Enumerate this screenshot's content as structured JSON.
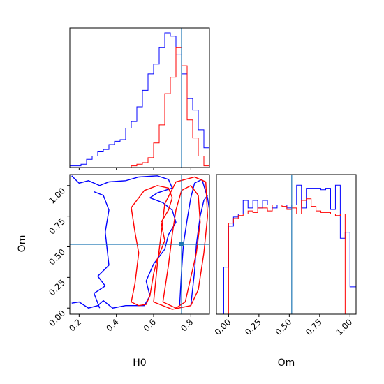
{
  "chart_data": [
    {
      "type": "histogram",
      "panel": "H0 marginal",
      "xlim": [
        0.15,
        0.9
      ],
      "truth": 0.75,
      "colors": {
        "blue": "#0000ff",
        "red": "#ff0000",
        "truth": "#1f77b4"
      },
      "series": [
        {
          "color": "blue",
          "edges": [
            0.15,
            0.18,
            0.21,
            0.24,
            0.27,
            0.3,
            0.33,
            0.36,
            0.39,
            0.42,
            0.45,
            0.48,
            0.51,
            0.54,
            0.57,
            0.6,
            0.63,
            0.66,
            0.69,
            0.72,
            0.75,
            0.78,
            0.81,
            0.84,
            0.87,
            0.9
          ],
          "values": [
            0.01,
            0.01,
            0.02,
            0.05,
            0.07,
            0.1,
            0.11,
            0.14,
            0.16,
            0.17,
            0.24,
            0.28,
            0.37,
            0.47,
            0.57,
            0.63,
            0.73,
            0.82,
            0.8,
            0.69,
            0.57,
            0.42,
            0.35,
            0.23,
            0.12
          ]
        },
        {
          "color": "red",
          "edges": [
            0.45,
            0.48,
            0.51,
            0.54,
            0.57,
            0.6,
            0.63,
            0.66,
            0.69,
            0.72,
            0.75,
            0.78,
            0.81,
            0.84,
            0.87,
            0.9
          ],
          "values": [
            0.0,
            0.01,
            0.02,
            0.03,
            0.06,
            0.15,
            0.26,
            0.45,
            0.55,
            0.73,
            0.62,
            0.29,
            0.18,
            0.07,
            0.01
          ]
        }
      ]
    },
    {
      "type": "contour",
      "panel": "H0 vs Om",
      "xlabel": "H0",
      "ylabel": "Om",
      "xlim": [
        0.15,
        0.9
      ],
      "ylim": [
        -0.05,
        1.09
      ],
      "xticks": [
        0.2,
        0.4,
        0.6,
        0.8
      ],
      "xtick_labels": [
        "0.2",
        "0.4",
        "0.6",
        "0.8"
      ],
      "yticks": [
        0.0,
        0.25,
        0.5,
        0.75,
        1.0
      ],
      "ytick_labels": [
        "0.00",
        "0.25",
        "0.50",
        "0.75",
        "1.00"
      ],
      "truth": [
        0.75,
        0.52
      ],
      "contours": [
        {
          "color": "blue",
          "points": [
            [
              0.16,
              1.08
            ],
            [
              0.2,
              1.02
            ],
            [
              0.25,
              1.04
            ],
            [
              0.31,
              1.0
            ],
            [
              0.36,
              1.03
            ],
            [
              0.45,
              1.04
            ],
            [
              0.52,
              1.07
            ],
            [
              0.62,
              1.08
            ],
            [
              0.68,
              1.05
            ],
            [
              0.7,
              0.98
            ],
            [
              0.62,
              0.94
            ],
            [
              0.58,
              0.9
            ],
            [
              0.65,
              0.86
            ],
            [
              0.7,
              0.8
            ],
            [
              0.72,
              0.7
            ],
            [
              0.68,
              0.6
            ],
            [
              0.66,
              0.48
            ],
            [
              0.6,
              0.36
            ],
            [
              0.56,
              0.22
            ],
            [
              0.58,
              0.1
            ],
            [
              0.55,
              0.02
            ],
            [
              0.45,
              0.02
            ],
            [
              0.38,
              0.0
            ],
            [
              0.33,
              0.06
            ],
            [
              0.3,
              0.02
            ],
            [
              0.25,
              0.0
            ],
            [
              0.2,
              0.05
            ],
            [
              0.16,
              0.04
            ]
          ]
        },
        {
          "color": "blue",
          "points": [
            [
              0.28,
              0.95
            ],
            [
              0.33,
              0.92
            ],
            [
              0.36,
              0.8
            ],
            [
              0.34,
              0.62
            ],
            [
              0.36,
              0.35
            ],
            [
              0.3,
              0.26
            ],
            [
              0.34,
              0.18
            ],
            [
              0.28,
              0.12
            ],
            [
              0.31,
              0.0
            ]
          ]
        },
        {
          "color": "blue",
          "points": [
            [
              0.74,
              0.02
            ],
            [
              0.75,
              0.3
            ],
            [
              0.76,
              0.52
            ],
            [
              0.78,
              0.72
            ],
            [
              0.8,
              0.9
            ],
            [
              0.82,
              1.02
            ],
            [
              0.86,
              1.05
            ],
            [
              0.89,
              0.9
            ],
            [
              0.9,
              0.8
            ]
          ]
        },
        {
          "color": "blue",
          "points": [
            [
              0.8,
              0.02
            ],
            [
              0.82,
              0.3
            ],
            [
              0.83,
              0.52
            ],
            [
              0.85,
              0.75
            ],
            [
              0.87,
              0.88
            ],
            [
              0.89,
              0.92
            ]
          ]
        },
        {
          "color": "red",
          "points": [
            [
              0.5,
              0.2
            ],
            [
              0.52,
              0.45
            ],
            [
              0.5,
              0.62
            ],
            [
              0.48,
              0.82
            ],
            [
              0.55,
              0.96
            ],
            [
              0.62,
              1.0
            ],
            [
              0.68,
              0.98
            ],
            [
              0.7,
              0.9
            ],
            [
              0.68,
              0.8
            ],
            [
              0.64,
              0.7
            ],
            [
              0.66,
              0.55
            ],
            [
              0.62,
              0.4
            ],
            [
              0.6,
              0.28
            ],
            [
              0.58,
              0.1
            ],
            [
              0.56,
              0.03
            ],
            [
              0.52,
              0.02
            ],
            [
              0.48,
              0.05
            ],
            [
              0.5,
              0.2
            ]
          ]
        },
        {
          "color": "red",
          "points": [
            [
              0.65,
              0.05
            ],
            [
              0.68,
              0.35
            ],
            [
              0.7,
              0.6
            ],
            [
              0.72,
              0.8
            ],
            [
              0.75,
              0.96
            ],
            [
              0.8,
              1.0
            ],
            [
              0.84,
              0.92
            ],
            [
              0.85,
              0.7
            ],
            [
              0.83,
              0.45
            ],
            [
              0.8,
              0.25
            ],
            [
              0.77,
              0.05
            ],
            [
              0.72,
              0.0
            ],
            [
              0.65,
              0.05
            ]
          ]
        },
        {
          "color": "red",
          "points": [
            [
              0.6,
              0.05
            ],
            [
              0.62,
              0.35
            ],
            [
              0.64,
              0.6
            ],
            [
              0.66,
              0.85
            ],
            [
              0.72,
              1.03
            ],
            [
              0.82,
              1.07
            ],
            [
              0.88,
              1.03
            ],
            [
              0.89,
              0.75
            ],
            [
              0.87,
              0.45
            ],
            [
              0.84,
              0.15
            ],
            [
              0.8,
              0.02
            ],
            [
              0.7,
              -0.01
            ],
            [
              0.6,
              0.05
            ]
          ]
        }
      ]
    },
    {
      "type": "histogram",
      "panel": "Om marginal",
      "xlabel": "Om",
      "xlim": [
        -0.1,
        1.05
      ],
      "xticks": [
        0.0,
        0.25,
        0.5,
        0.75,
        1.0
      ],
      "xtick_labels": [
        "0.00",
        "0.25",
        "0.50",
        "0.75",
        "1.00"
      ],
      "truth": 0.52,
      "series": [
        {
          "color": "blue",
          "edges": [
            -0.1,
            -0.04,
            0.0,
            0.04,
            0.08,
            0.12,
            0.16,
            0.2,
            0.24,
            0.28,
            0.32,
            0.36,
            0.4,
            0.44,
            0.48,
            0.52,
            0.56,
            0.6,
            0.64,
            0.68,
            0.72,
            0.76,
            0.8,
            0.84,
            0.88,
            0.92,
            0.96,
            1.0,
            1.05
          ],
          "values": [
            0.0,
            0.31,
            0.58,
            0.64,
            0.66,
            0.75,
            0.7,
            0.75,
            0.7,
            0.75,
            0.72,
            0.7,
            0.72,
            0.72,
            0.7,
            0.72,
            0.85,
            0.7,
            0.83,
            0.83,
            0.83,
            0.82,
            0.83,
            0.69,
            0.85,
            0.5,
            0.54,
            0.18
          ]
        },
        {
          "color": "red",
          "edges": [
            -0.1,
            -0.04,
            0.0,
            0.04,
            0.08,
            0.12,
            0.16,
            0.2,
            0.24,
            0.28,
            0.32,
            0.36,
            0.4,
            0.44,
            0.48,
            0.52,
            0.56,
            0.6,
            0.64,
            0.68,
            0.72,
            0.76,
            0.8,
            0.84,
            0.88,
            0.92,
            0.96,
            1.0,
            1.05
          ],
          "values": [
            0.0,
            0.0,
            0.6,
            0.63,
            0.65,
            0.66,
            0.68,
            0.67,
            0.7,
            0.7,
            0.68,
            0.72,
            0.72,
            0.71,
            0.69,
            0.7,
            0.66,
            0.75,
            0.76,
            0.71,
            0.68,
            0.67,
            0.67,
            0.66,
            0.65,
            0.66,
            0.0,
            0.0
          ]
        }
      ]
    }
  ]
}
